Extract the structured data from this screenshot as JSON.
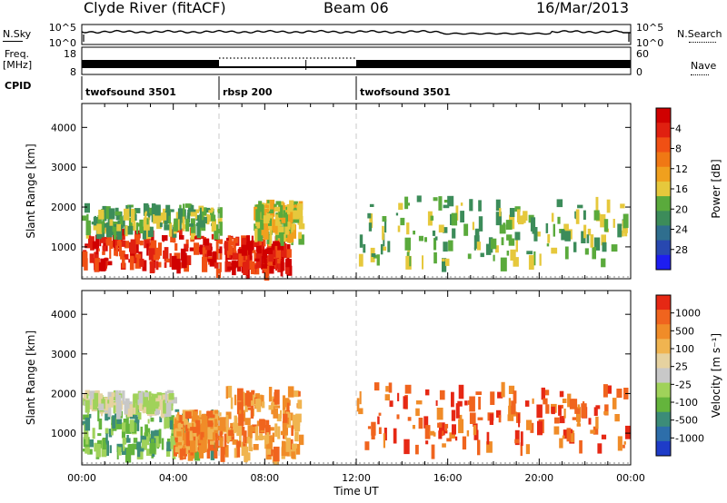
{
  "header": {
    "station": "Clyde River (fitACF)",
    "beam": "Beam 06",
    "date": "16/Mar/2013"
  },
  "left_labels": {
    "nsky": "N.Sky",
    "freq_line1": "Freq.",
    "freq_line2": "[MHz]",
    "cpid": "CPID"
  },
  "right_labels": {
    "nsearch": "N.Search",
    "nave": "Nave"
  },
  "cpid_segments": [
    {
      "label": "twofsound 3501",
      "start_hour": 0
    },
    {
      "label": "rbsp 200",
      "start_hour": 6
    },
    {
      "label": "twofsound 3501",
      "start_hour": 12
    }
  ],
  "colors": {
    "axis": "#000000",
    "divider": "#c8c8c8"
  },
  "chart_data": [
    {
      "type": "line",
      "name": "noise-panel",
      "left_ticks": [
        "10^5",
        "10^0"
      ],
      "right_ticks": [
        "10^5",
        "10^0"
      ]
    },
    {
      "type": "line",
      "name": "frequency-panel",
      "left_ticks": [
        "18",
        "8"
      ],
      "right_ticks": [
        "60",
        "0"
      ]
    },
    {
      "type": "heatmap",
      "name": "power-panel",
      "ylabel": "Slant Range [km]",
      "ylim": [
        200,
        4600
      ],
      "y_ticks": [
        1000,
        2000,
        3000,
        4000
      ],
      "xlim": [
        0,
        24
      ],
      "colorbar": {
        "label": "Power [dB]",
        "ticks": [
          "4",
          "8",
          "12",
          "16",
          "20",
          "24",
          "28"
        ],
        "colors": [
          "#1d1df0",
          "#2848b0",
          "#2f6e8e",
          "#3c8c5a",
          "#5aaa3c",
          "#e6c83c",
          "#f0a01e",
          "#f07814",
          "#f05014",
          "#e02010",
          "#d00000"
        ]
      },
      "regions": [
        {
          "x0": 0.0,
          "x1": 6.0,
          "r0": 600,
          "r1": 1500,
          "c": 9
        },
        {
          "x0": 0.0,
          "x1": 6.0,
          "r0": 1500,
          "r1": 2100,
          "c": 4
        },
        {
          "x0": 6.2,
          "x1": 9.0,
          "r0": 500,
          "r1": 1300,
          "c": 9
        },
        {
          "x0": 7.5,
          "x1": 9.5,
          "r0": 1300,
          "r1": 2200,
          "c": 5
        },
        {
          "x0": 12.0,
          "x1": 23.8,
          "r0": 700,
          "r1": 2300,
          "c": 4
        }
      ]
    },
    {
      "type": "heatmap",
      "name": "velocity-panel",
      "ylabel": "Slant Range [km]",
      "ylim": [
        200,
        4600
      ],
      "y_ticks": [
        1000,
        2000,
        3000,
        4000
      ],
      "xlim": [
        0,
        24
      ],
      "xlabel": "Time UT",
      "x_ticks": [
        "00:00",
        "04:00",
        "08:00",
        "12:00",
        "16:00",
        "20:00",
        "00:00"
      ],
      "colorbar": {
        "label": "Velocity [m s⁻¹]",
        "ticks": [
          "1000",
          "500",
          "100",
          "25",
          "-25",
          "-100",
          "-500",
          "-1000"
        ],
        "colors": [
          "#1e3cc8",
          "#2d6eaa",
          "#3c8c78",
          "#64b43c",
          "#a0d25a",
          "#c8c8c8",
          "#e6d2a0",
          "#f0b450",
          "#f08c28",
          "#f0641e",
          "#e62814"
        ]
      },
      "regions": [
        {
          "x0": 0.0,
          "x1": 6.0,
          "r0": 600,
          "r1": 1700,
          "c": 3
        },
        {
          "x0": 0.0,
          "x1": 4.0,
          "r0": 1700,
          "r1": 2100,
          "c": 5
        },
        {
          "x0": 4.0,
          "x1": 6.0,
          "r0": 600,
          "r1": 1600,
          "c": 8
        },
        {
          "x0": 6.0,
          "x1": 9.5,
          "r0": 500,
          "r1": 2200,
          "c": 8
        },
        {
          "x0": 12.0,
          "x1": 23.8,
          "r0": 700,
          "r1": 2300,
          "c": 9
        }
      ]
    }
  ]
}
